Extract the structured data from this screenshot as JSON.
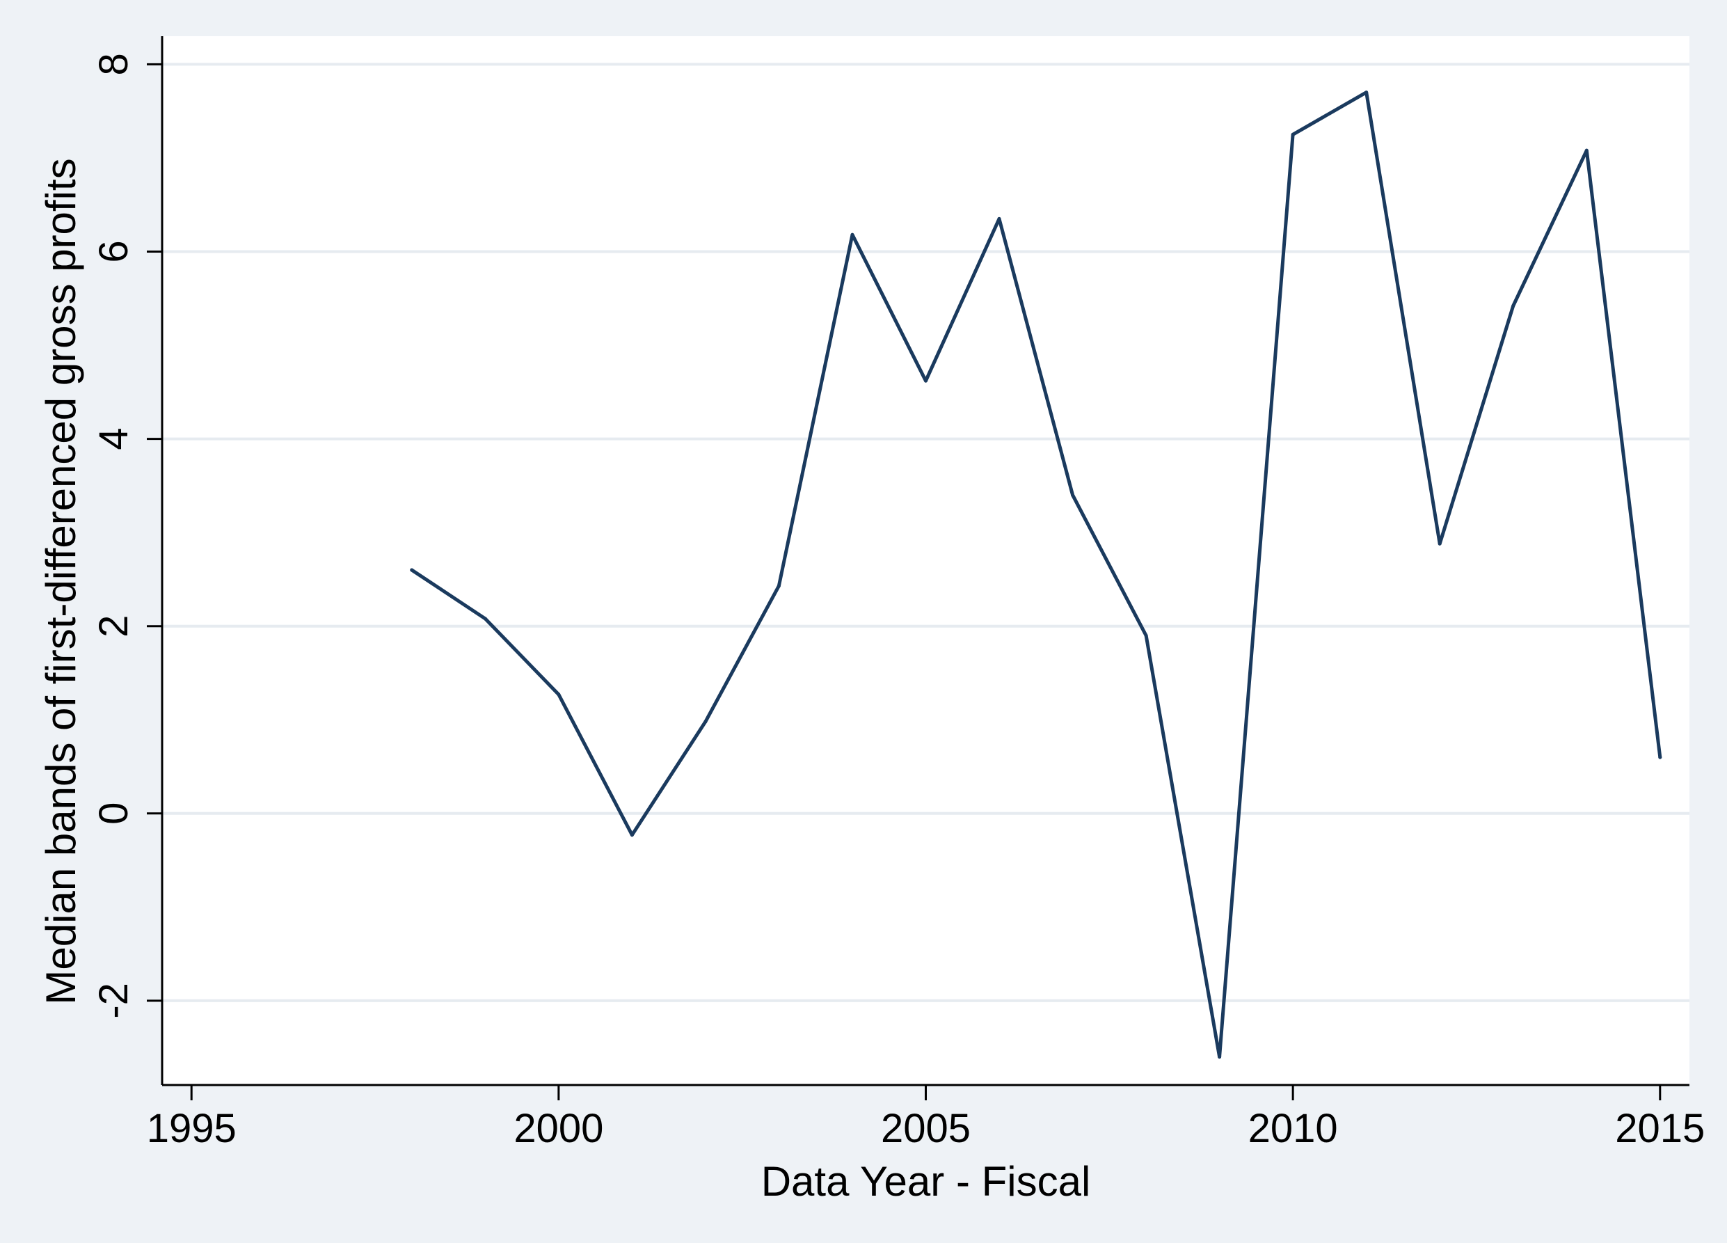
{
  "chart_data": {
    "type": "line",
    "xlabel": "Data Year - Fiscal",
    "ylabel": "Median bands of first-differenced gross profits",
    "xlim": [
      1994.6,
      2015.4
    ],
    "ylim": [
      -2.9,
      8.3
    ],
    "xticks": [
      1995,
      2000,
      2005,
      2010,
      2015
    ],
    "yticks": [
      -2,
      0,
      2,
      4,
      6,
      8
    ],
    "grid": "horizontal",
    "legend": "none",
    "series": [
      {
        "x": [
          1998,
          1999,
          2000,
          2001,
          2002,
          2003,
          2004,
          2005,
          2006,
          2007,
          2008,
          2009,
          2010,
          2011,
          2012,
          2013,
          2014,
          2015
        ],
        "values": [
          2.6,
          2.08,
          1.27,
          -0.23,
          0.98,
          2.43,
          6.18,
          4.62,
          6.35,
          3.4,
          1.9,
          -2.6,
          7.25,
          7.7,
          2.88,
          5.42,
          7.08,
          0.6
        ]
      }
    ],
    "colors": {
      "line": "#1a3a5e",
      "grid": "#e6ebf0",
      "plot_bg": "#ffffff",
      "page_bg": "#eef2f6",
      "axis": "#000000"
    }
  }
}
